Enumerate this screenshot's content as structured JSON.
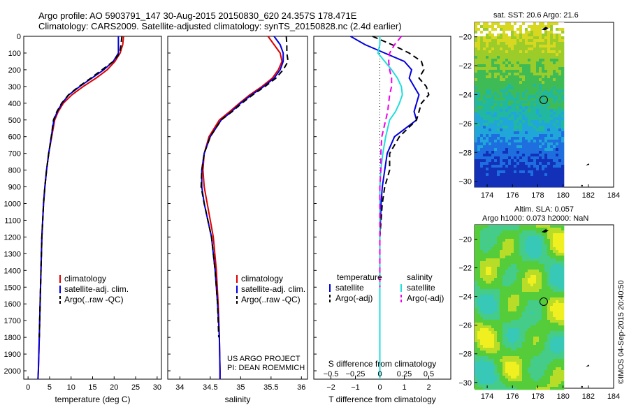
{
  "header": {
    "line1": "Argo profile: AO 5903791_147 30-Aug-2015 20150830_620 24.357S 178.471E",
    "line2": "Climatology: CARS2009. Satellite-adjusted climatology: synTS_20150828.nc (2.4d earlier)"
  },
  "credit": "©IMOS 04-Sep-2015 20:40:50",
  "project": {
    "line1": "US ARGO PROJECT",
    "line2": "PI: DEAN ROEMMICH"
  },
  "colors": {
    "climatology": "#dd0000",
    "satellite": "#0000dd",
    "argo": "#000000",
    "sat_salinity": "#22dddd",
    "argo_salinity": "#ee00ee"
  },
  "chart_data": [
    {
      "type": "line",
      "id": "temperature",
      "xlabel": "temperature (deg C)",
      "xlim": [
        -1,
        31
      ],
      "ylim": [
        2050,
        0
      ],
      "xticks": [
        0,
        5,
        10,
        15,
        20,
        25,
        30
      ],
      "yticks": [
        0,
        100,
        200,
        300,
        400,
        500,
        600,
        700,
        800,
        900,
        1000,
        1100,
        1200,
        1300,
        1400,
        1500,
        1600,
        1700,
        1800,
        1900,
        2000
      ],
      "legend": [
        "climatology",
        "satellite-adj. clim.",
        "Argo(..raw -QC)"
      ],
      "series": [
        {
          "name": "climatology",
          "color": "#dd0000",
          "x": [
            22.2,
            22.0,
            21.4,
            20.2,
            18.4,
            15.8,
            12.8,
            10.2,
            8.2,
            7.0,
            6.2,
            5.5,
            4.8,
            4.3,
            3.9,
            3.6,
            3.4,
            3.2,
            3.0,
            2.8,
            2.6,
            2.4,
            2.3
          ],
          "y": [
            0,
            50,
            100,
            150,
            200,
            250,
            300,
            350,
            400,
            450,
            500,
            600,
            700,
            800,
            900,
            1000,
            1100,
            1200,
            1400,
            1600,
            1800,
            2000,
            2050
          ]
        },
        {
          "name": "satellite-adj. clim.",
          "color": "#0000dd",
          "x": [
            21.0,
            21.0,
            21.0,
            19.8,
            17.6,
            14.8,
            12.0,
            9.5,
            7.9,
            6.8,
            6.0,
            5.4,
            4.8,
            4.3,
            3.9,
            3.6,
            3.4,
            3.2,
            3.0,
            2.8,
            2.6,
            2.4,
            2.3
          ],
          "y": [
            0,
            50,
            100,
            150,
            200,
            250,
            300,
            350,
            400,
            450,
            500,
            600,
            700,
            800,
            900,
            1000,
            1100,
            1200,
            1400,
            1600,
            1800,
            2000,
            2050
          ]
        },
        {
          "name": "Argo(..raw -QC)",
          "color": "#000000",
          "dash": true,
          "x": [
            21.8,
            21.6,
            21.3,
            19.8,
            17.2,
            14.6,
            11.8,
            9.4,
            7.8,
            6.7,
            5.9,
            5.4,
            4.8,
            4.3,
            3.9,
            3.6,
            3.4,
            3.2,
            3.0,
            2.8,
            2.6
          ],
          "y": [
            0,
            50,
            100,
            150,
            200,
            250,
            300,
            350,
            400,
            450,
            500,
            600,
            700,
            800,
            900,
            1000,
            1100,
            1200,
            1400,
            1600,
            1800
          ]
        }
      ]
    },
    {
      "type": "line",
      "id": "salinity",
      "xlabel": "salinity",
      "xlim": [
        33.8,
        36.1
      ],
      "ylim": [
        2050,
        0
      ],
      "xticks": [
        34,
        34.5,
        35,
        35.5,
        36
      ],
      "legend": [
        "climatology",
        "satellite-adj. clim.",
        "Argo(..raw -QC)"
      ],
      "series": [
        {
          "name": "climatology",
          "color": "#dd0000",
          "x": [
            35.45,
            35.55,
            35.65,
            35.68,
            35.62,
            35.52,
            35.35,
            35.15,
            34.98,
            34.82,
            34.65,
            34.48,
            34.4,
            34.38,
            34.4,
            34.45,
            34.5,
            34.55,
            34.6,
            34.63,
            34.65,
            34.66,
            34.66
          ],
          "y": [
            0,
            50,
            100,
            150,
            200,
            250,
            300,
            350,
            400,
            450,
            500,
            600,
            700,
            800,
            900,
            1000,
            1100,
            1200,
            1400,
            1600,
            1800,
            2000,
            2050
          ]
        },
        {
          "name": "satellite-adj. clim.",
          "color": "#0000dd",
          "x": [
            35.55,
            35.65,
            35.7,
            35.7,
            35.65,
            35.55,
            35.38,
            35.18,
            35.0,
            34.85,
            34.68,
            34.5,
            34.4,
            34.36,
            34.36,
            34.4,
            34.46,
            34.52,
            34.58,
            34.62,
            34.65,
            34.66,
            34.66
          ],
          "y": [
            0,
            50,
            100,
            150,
            200,
            250,
            300,
            350,
            400,
            450,
            500,
            600,
            700,
            800,
            900,
            1000,
            1100,
            1200,
            1400,
            1600,
            1800,
            2000,
            2050
          ]
        },
        {
          "name": "Argo(..raw -QC)",
          "color": "#000000",
          "dash": true,
          "x": [
            35.75,
            35.76,
            35.76,
            35.78,
            35.7,
            35.58,
            35.4,
            35.2,
            35.02,
            34.86,
            34.68,
            34.5,
            34.4,
            34.36,
            34.35,
            34.4,
            34.46,
            34.52,
            34.58,
            34.62,
            34.64
          ],
          "y": [
            0,
            50,
            100,
            150,
            200,
            250,
            300,
            350,
            400,
            450,
            500,
            600,
            700,
            800,
            900,
            1000,
            1100,
            1200,
            1400,
            1600,
            1800
          ]
        }
      ]
    },
    {
      "type": "line",
      "id": "difference",
      "xlabel": "T difference from climatology",
      "x2label": "S difference from climatology",
      "xlim": [
        -2.7,
        2.9
      ],
      "ylim": [
        2050,
        0
      ],
      "xticks": [
        -2,
        -1,
        0,
        1,
        2
      ],
      "x2ticks": [
        -0.5,
        -0.25,
        0,
        0.25,
        0.5
      ],
      "legend_groups": [
        "temperature",
        "salinity"
      ],
      "legend": [
        "satellite",
        "Argo(-adj)",
        "satellite",
        "Argo(-adj)"
      ],
      "series": [
        {
          "name": "satellite",
          "group": "temperature",
          "color": "#0000dd",
          "x": [
            -1.2,
            -0.6,
            0.2,
            1.0,
            1.3,
            1.2,
            1.4,
            1.6,
            1.5,
            1.4,
            1.5,
            0.6,
            0.3,
            0.2,
            0.1,
            0.05,
            0,
            0,
            0,
            0,
            0,
            0
          ],
          "y": [
            0,
            50,
            100,
            150,
            200,
            250,
            300,
            350,
            400,
            450,
            500,
            600,
            700,
            800,
            900,
            1000,
            1200,
            1400,
            1600,
            1800,
            2000,
            2050
          ]
        },
        {
          "name": "Argo(-adj)",
          "group": "temperature",
          "color": "#000000",
          "dash": true,
          "x": [
            -0.3,
            0.5,
            1.2,
            1.7,
            1.8,
            1.6,
            1.9,
            2.0,
            1.7,
            1.6,
            1.5,
            0.8,
            0.4,
            0.4,
            0.2,
            0.1,
            0,
            0,
            0
          ],
          "y": [
            0,
            50,
            100,
            150,
            200,
            250,
            300,
            350,
            400,
            450,
            500,
            600,
            700,
            800,
            900,
            1000,
            1200,
            1400,
            1500
          ]
        },
        {
          "name": "satellite",
          "group": "salinity",
          "color": "#22dddd",
          "x": [
            0.0,
            0.0,
            -0.02,
            0.05,
            0.12,
            0.18,
            0.22,
            0.23,
            0.2,
            0.16,
            0.1,
            0.06,
            0.03,
            0.01,
            0.0,
            0.0,
            0.0,
            0.0,
            0.0,
            0.0,
            0.0
          ],
          "y": [
            0,
            50,
            100,
            150,
            200,
            250,
            300,
            350,
            400,
            450,
            500,
            600,
            700,
            800,
            900,
            1000,
            1200,
            1400,
            1600,
            1800,
            2050
          ]
        },
        {
          "name": "Argo(-adj)",
          "group": "salinity",
          "color": "#ee00ee",
          "dash": true,
          "x": [
            0.22,
            0.15,
            0.1,
            0.09,
            0.1,
            0.12,
            0.12,
            0.1,
            0.09,
            0.08,
            0.06,
            0.02,
            0.01,
            0.01,
            0.0,
            0.0,
            0.0
          ],
          "y": [
            0,
            50,
            100,
            150,
            200,
            250,
            300,
            350,
            400,
            450,
            500,
            600,
            700,
            800,
            900,
            1000,
            1500
          ]
        }
      ]
    },
    {
      "type": "heatmap",
      "id": "sst_map",
      "title": "sat. SST: 20.6  Argo: 21.6",
      "xlim": [
        173,
        184
      ],
      "ylim": [
        -30.4,
        -19
      ],
      "xticks": [
        174,
        176,
        178,
        180,
        182,
        184
      ],
      "yticks": [
        -20,
        -22,
        -24,
        -26,
        -28,
        -30
      ],
      "data_xlim": [
        173,
        180
      ],
      "marker": {
        "lon": 178.47,
        "lat": -24.36
      }
    },
    {
      "type": "heatmap",
      "id": "sla_map",
      "title": "Altim. SLA: 0.057",
      "subtitle": "Argo h1000: 0.073  h2000: NaN",
      "xlim": [
        173,
        184
      ],
      "ylim": [
        -30.4,
        -19
      ],
      "xticks": [
        174,
        176,
        178,
        180,
        182,
        184
      ],
      "yticks": [
        -20,
        -22,
        -24,
        -26,
        -28,
        -30
      ],
      "data_xlim": [
        173,
        180
      ],
      "marker": {
        "lon": 178.47,
        "lat": -24.36
      }
    }
  ]
}
